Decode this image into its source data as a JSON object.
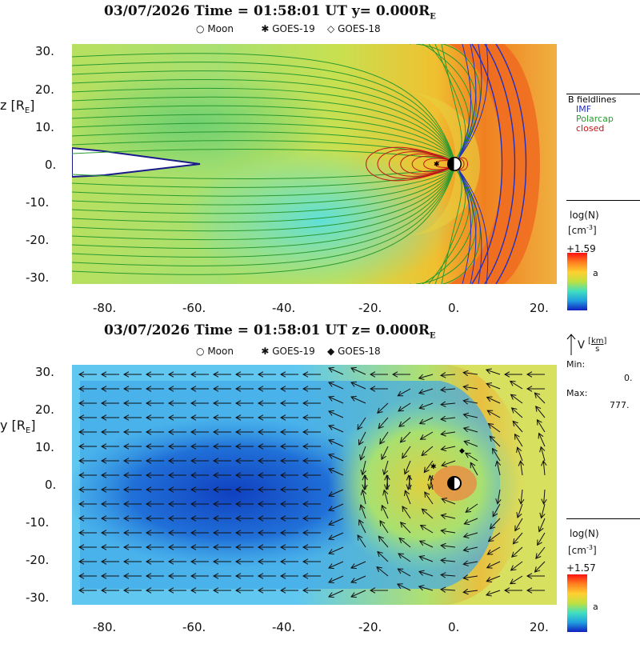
{
  "top_panel": {
    "title": "03/07/2026 Time = 01:58:01 UT y= 0.000R",
    "title_sub": "E",
    "legend": {
      "moon": "Moon",
      "goes19": "GOES-19",
      "goes18": "GOES-18"
    },
    "axis_label": "z [R",
    "axis_label_sub": "E",
    "axis_label_close": "]",
    "y_ticks": [
      "30.",
      "20.",
      "10.",
      "0.",
      "-10.",
      "-20.",
      "-30."
    ],
    "x_ticks": [
      "-80.",
      "-60.",
      "-40.",
      "-20.",
      "0.",
      "20."
    ],
    "fieldlines": {
      "title": "B fieldlines",
      "imf": "IMF",
      "polarcap": "Polarcap",
      "closed": "closed"
    },
    "colorbar": {
      "label1": "log(N)",
      "label2": "[cm",
      "label2_sup": "-3",
      "label2_close": "]",
      "max": "+1.59",
      "marker": "a"
    }
  },
  "bottom_panel": {
    "title": "03/07/2026 Time = 01:58:01 UT z= 0.000R",
    "title_sub": "E",
    "legend": {
      "moon": "Moon",
      "goes19": "GOES-19",
      "goes18": "GOES-18"
    },
    "axis_label": "y [R",
    "axis_label_sub": "E",
    "axis_label_close": "]",
    "y_ticks": [
      "30.",
      "20.",
      "10.",
      "0.",
      "-10.",
      "-20.",
      "-30."
    ],
    "x_ticks": [
      "-80.",
      "-60.",
      "-40.",
      "-20.",
      "0.",
      "20."
    ],
    "velocity": {
      "label": "V",
      "unit_num": "km",
      "unit_den": "s",
      "min_label": "Min:",
      "min_value": "0.",
      "max_label": "Max:",
      "max_value": "777."
    },
    "colorbar": {
      "label1": "log(N)",
      "label2": "[cm",
      "label2_sup": "-3",
      "label2_close": "]",
      "max": "+1.57",
      "marker": "a"
    }
  },
  "colors": {
    "imf": "#2030c0",
    "polarcap": "#2a9a30",
    "closed": "#c01818",
    "arrow": "#111111"
  }
}
